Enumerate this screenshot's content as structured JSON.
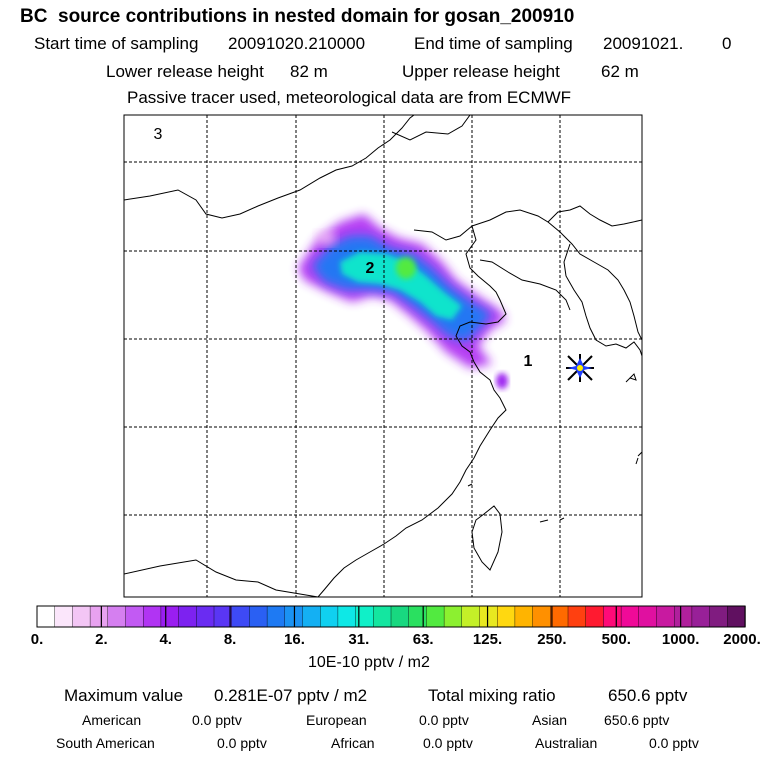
{
  "title": "BC  source contributions in nested domain for gosan_200910",
  "header": {
    "start_label": "Start time of sampling",
    "start_value": "20091020.210000",
    "end_label": "End time of sampling",
    "end_value": "20091021.",
    "end_extra": "0",
    "lower_label": "Lower release height",
    "lower_value": "82 m",
    "upper_label": "Upper release height",
    "upper_value": "62 m",
    "note": "Passive tracer used, meteorological data are from ECMWF"
  },
  "map_labels": [
    "3",
    "2",
    "1"
  ],
  "chart_data": {
    "type": "heatmap",
    "title": "BC  source contributions in nested domain for gosan_200910",
    "colorbar": {
      "unit": "10E-10 pptv / m2",
      "tick_labels": [
        "0.",
        "2.",
        "4.",
        "8.",
        "16.",
        "31.",
        "63.",
        "125.",
        "250.",
        "500.",
        "1000.",
        "2000."
      ],
      "colors": [
        "#ffffff",
        "#fbe6fb",
        "#f3c6f5",
        "#e8a2f0",
        "#d57ff0",
        "#c25af3",
        "#b134f3",
        "#9a1ef0",
        "#7d22f0",
        "#6a2cf2",
        "#5a36f4",
        "#3e4af5",
        "#2a60f3",
        "#1e7af3",
        "#1a92f3",
        "#14b0f3",
        "#10d0f0",
        "#0ee8e6",
        "#10f0c8",
        "#14e6a0",
        "#18d880",
        "#2ae060",
        "#52ea40",
        "#8cf030",
        "#c4f028",
        "#e8e820",
        "#ffd810",
        "#ffb400",
        "#ff9000",
        "#ff6a00",
        "#ff4010",
        "#ff1a30",
        "#ff0a78",
        "#f00a98",
        "#e010a0",
        "#c81aa0",
        "#b0209c",
        "#982098",
        "#801c80",
        "#601060"
      ]
    },
    "field_peak_level": 22,
    "maximum_label": "Maximum value",
    "maximum_value": "0.281E-07 pptv / m2",
    "total_label": "Total mixing ratio",
    "total_value": "650.6 pptv"
  },
  "regions": {
    "american_label": "American",
    "american_value": "0.0 pptv",
    "european_label": "European",
    "european_value": "0.0 pptv",
    "asian_label": "Asian",
    "asian_value": "650.6 pptv",
    "south_american_label": "South American",
    "south_american_value": "0.0 pptv",
    "african_label": "African",
    "african_value": "0.0 pptv",
    "australian_label": "Australian",
    "australian_value": "0.0 pptv"
  },
  "colors": {
    "frame": "#000000",
    "grid": "#000000",
    "marker_a": "#2040ff",
    "marker_b": "#ffee00"
  },
  "icons": {
    "receptor": "star-marker-icon"
  }
}
